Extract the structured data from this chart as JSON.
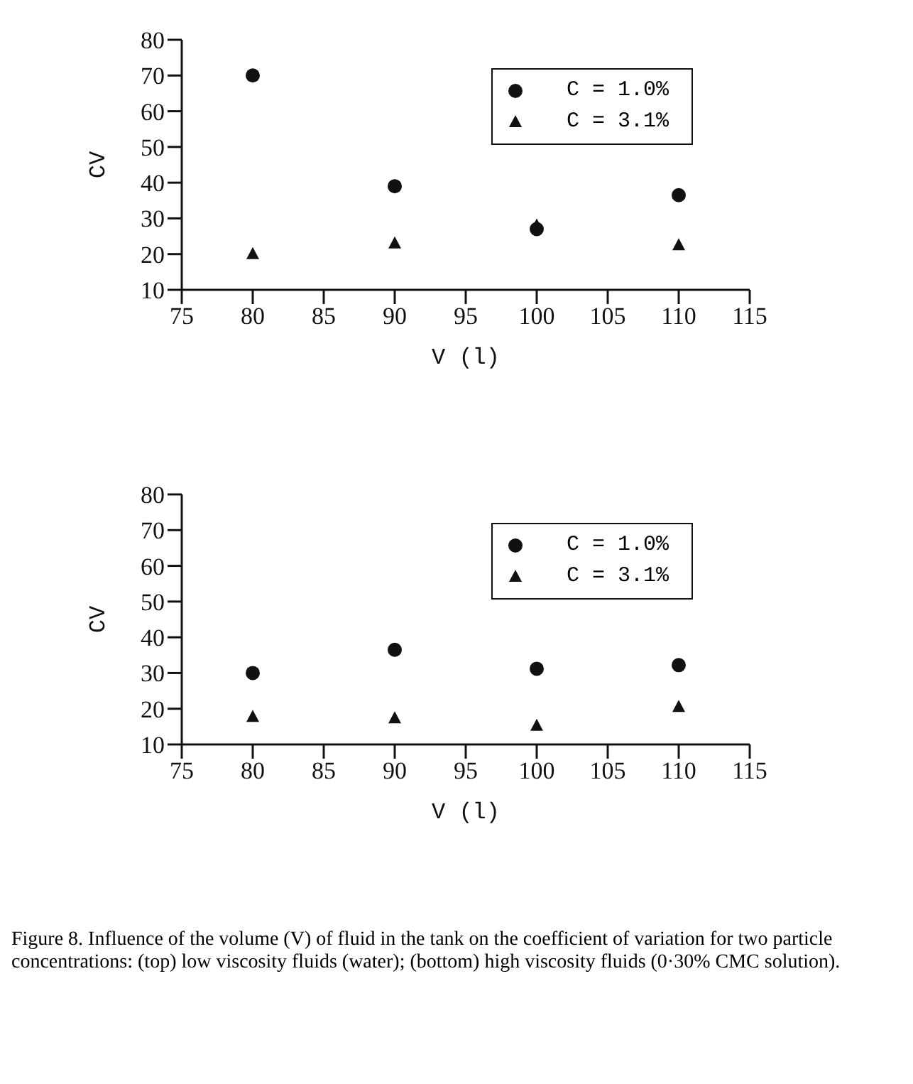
{
  "chart_data": [
    {
      "type": "scatter",
      "x": [
        80,
        90,
        100,
        110
      ],
      "xlabel": "V (l)",
      "ylabel": "CV",
      "xlim": [
        75,
        115
      ],
      "xticks": [
        75,
        80,
        85,
        90,
        95,
        100,
        105,
        110,
        115
      ],
      "ylim": [
        10,
        80
      ],
      "yticks": [
        10,
        20,
        30,
        40,
        50,
        60,
        70,
        80
      ],
      "grid": false,
      "legend": "top right",
      "series": [
        {
          "name": "C = 1.0%",
          "color": "#111111",
          "marker": "circle",
          "values": [
            70,
            39,
            27,
            36.5
          ]
        },
        {
          "name": "C = 3.1%",
          "color": "#111111",
          "marker": "triangle",
          "values": [
            20,
            23,
            28,
            22.5
          ]
        }
      ]
    },
    {
      "type": "scatter",
      "x": [
        80,
        90,
        100,
        110
      ],
      "xlabel": "V (l)",
      "ylabel": "CV",
      "xlim": [
        75,
        115
      ],
      "xticks": [
        75,
        80,
        85,
        90,
        95,
        100,
        105,
        110,
        115
      ],
      "ylim": [
        10,
        80
      ],
      "yticks": [
        10,
        20,
        30,
        40,
        50,
        60,
        70,
        80
      ],
      "grid": false,
      "legend": "top right",
      "series": [
        {
          "name": "C = 1.0%",
          "color": "#111111",
          "marker": "circle",
          "values": [
            30,
            36.5,
            31.2,
            32.2
          ]
        },
        {
          "name": "C = 3.1%",
          "color": "#111111",
          "marker": "triangle",
          "values": [
            17.7,
            17.3,
            15.2,
            20.5
          ]
        }
      ],
      "annotations": [
        "Figure 8. Influence of the volume (V) of fluid in the tank on the coefficient of variation for two particle concentrations: (top) low viscosity fluids (water); (bottom) high viscosity fluids (0·30% CMC solution)."
      ]
    }
  ]
}
